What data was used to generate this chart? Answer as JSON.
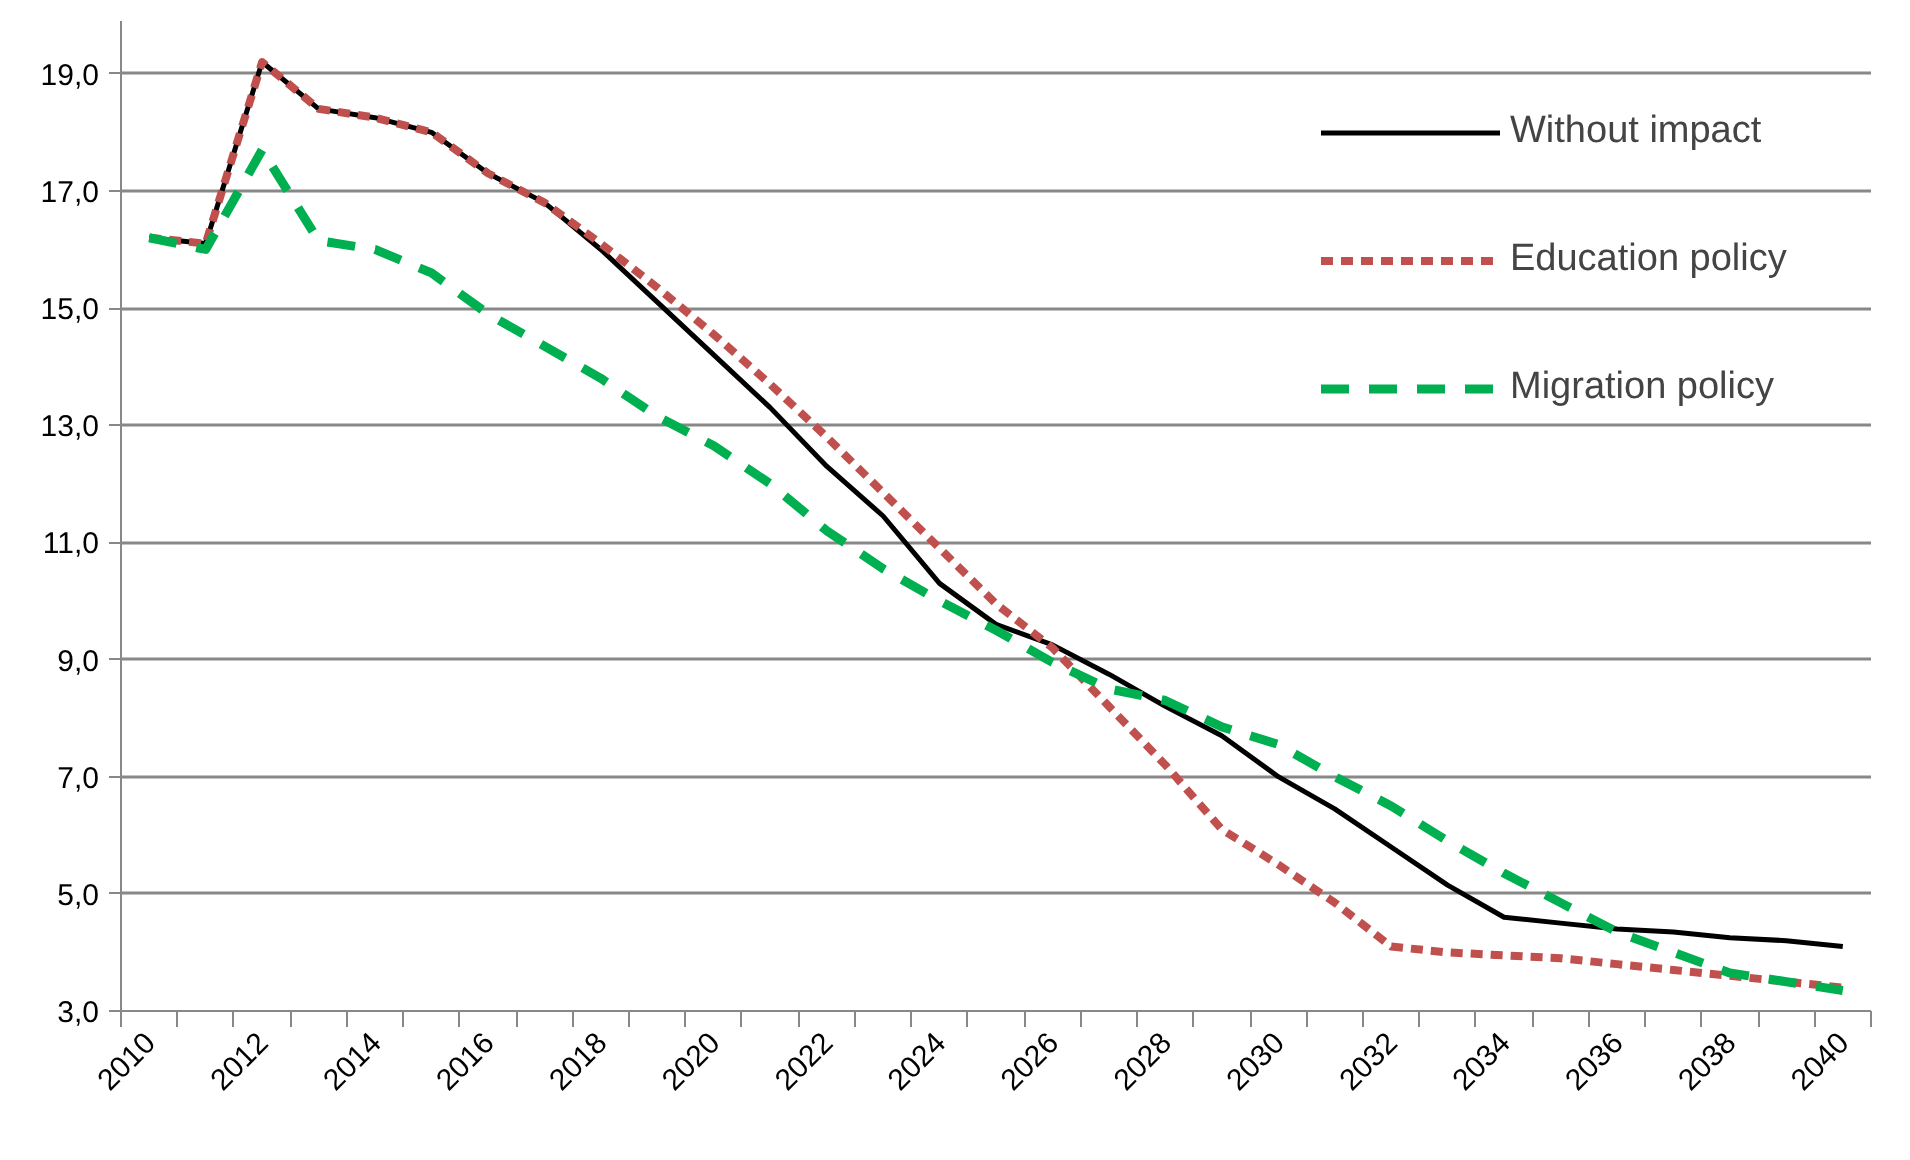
{
  "chart_data": {
    "type": "line",
    "categories": [
      "2010",
      null,
      "2012",
      null,
      "2014",
      null,
      "2016",
      null,
      "2018",
      null,
      "2020",
      null,
      "2022",
      null,
      "2024",
      null,
      "2026",
      null,
      "2028",
      null,
      "2030",
      null,
      "2032",
      null,
      "2034",
      null,
      "2036",
      null,
      "2038",
      null,
      "2040"
    ],
    "series": [
      {
        "name": "Without impact",
        "color": "#000000",
        "line_style": "solid",
        "values": [
          16.2,
          16.1,
          19.2,
          18.4,
          18.25,
          18.0,
          17.3,
          16.8,
          16.0,
          15.1,
          14.2,
          13.3,
          12.3,
          11.45,
          10.3,
          9.6,
          9.25,
          8.75,
          8.2,
          7.7,
          7.0,
          6.45,
          5.8,
          5.15,
          4.6,
          4.5,
          4.4,
          4.35,
          4.25,
          4.2,
          4.1
        ]
      },
      {
        "name": "Education policy",
        "color": "#c0504d",
        "line_style": "dotted",
        "values": [
          16.2,
          16.1,
          19.2,
          18.4,
          18.25,
          18.0,
          17.3,
          16.8,
          16.1,
          15.35,
          14.55,
          13.7,
          12.8,
          11.85,
          10.9,
          9.95,
          9.2,
          8.2,
          7.2,
          6.1,
          5.5,
          4.85,
          4.1,
          4.0,
          3.95,
          3.9,
          3.8,
          3.7,
          3.6,
          3.5,
          3.4
        ]
      },
      {
        "name": "Migration policy",
        "color": "#00b050",
        "line_style": "dashed",
        "values": [
          16.2,
          16.0,
          17.7,
          16.15,
          16.0,
          15.6,
          14.9,
          14.35,
          13.8,
          13.15,
          12.65,
          12.0,
          11.2,
          10.55,
          10.0,
          9.5,
          8.95,
          8.5,
          8.3,
          7.85,
          7.55,
          7.0,
          6.5,
          5.9,
          5.35,
          4.85,
          4.35,
          4.0,
          3.65,
          3.5,
          3.35
        ]
      }
    ],
    "ylim": [
      3,
      19.9
    ],
    "yticks": [
      {
        "value": 3,
        "label": "3,0"
      },
      {
        "value": 5,
        "label": "5,0"
      },
      {
        "value": 7,
        "label": "7,0"
      },
      {
        "value": 9,
        "label": "9,0"
      },
      {
        "value": 11,
        "label": "11,0"
      },
      {
        "value": 13,
        "label": "13,0"
      },
      {
        "value": 15,
        "label": "15,0"
      },
      {
        "value": 17,
        "label": "17,0"
      },
      {
        "value": 19,
        "label": "19,0"
      }
    ],
    "grid": "y",
    "legend": "right"
  }
}
